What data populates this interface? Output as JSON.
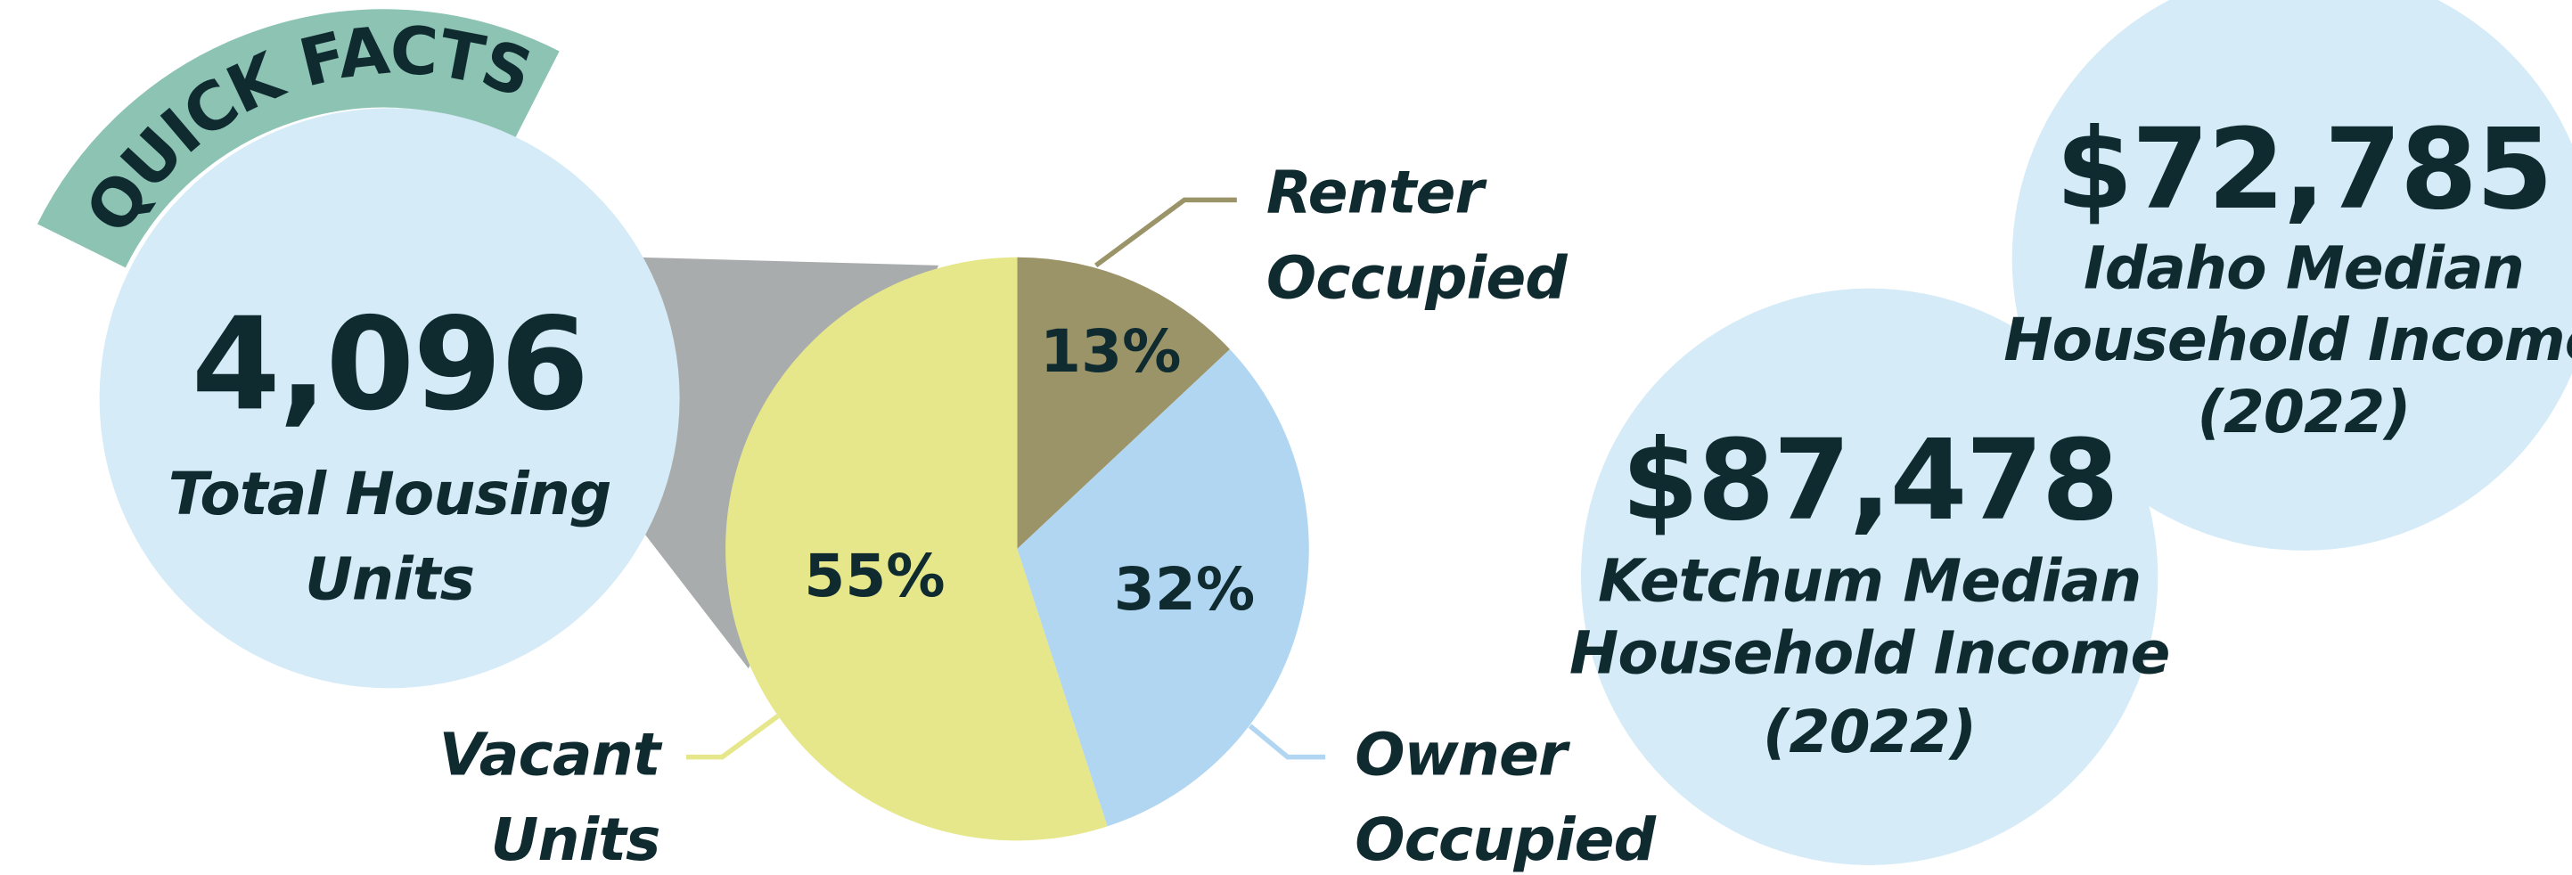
{
  "badge": "QUICK FACTS",
  "facts": [
    {
      "value": "4,096",
      "label": [
        "Total Housing",
        "Units"
      ]
    },
    {
      "value": "$87,478",
      "label": [
        "Ketchum Median",
        "Household Income",
        "(2022)"
      ]
    },
    {
      "value": "$72,785",
      "label": [
        "Idaho Median",
        "Household Income",
        "(2022)"
      ]
    }
  ],
  "chart_data": {
    "type": "pie",
    "categories": [
      "Renter Occupied",
      "Owner Occupied",
      "Vacant Units"
    ],
    "values": [
      13,
      32,
      55
    ],
    "value_labels": [
      "13%",
      "32%",
      "55%"
    ],
    "colors": [
      "#9c9469",
      "#b0d6f2",
      "#e6e68a"
    ]
  }
}
